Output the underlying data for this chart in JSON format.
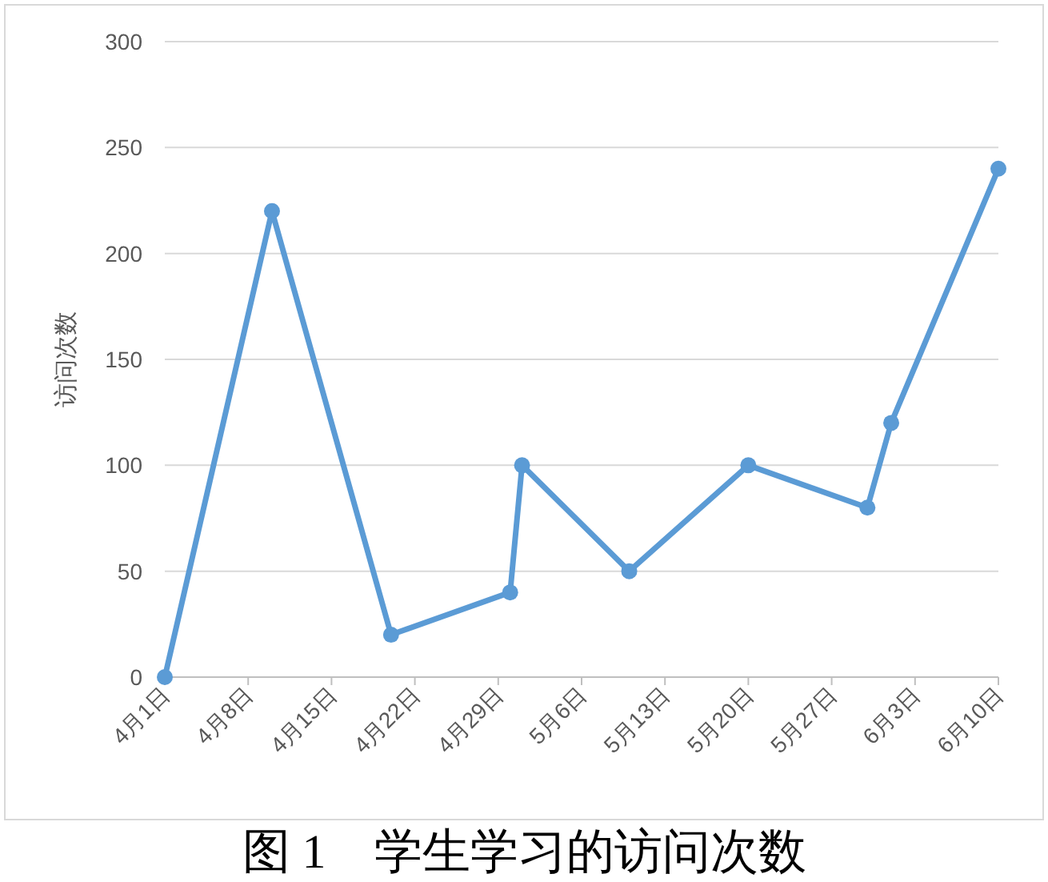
{
  "chart_data": {
    "type": "line",
    "title": "图 1　学生学习的访问次数",
    "ylabel": "访问次数",
    "x": [
      "--04-01",
      "--04-10",
      "--04-20",
      "--04-30",
      "--05-01",
      "--05-10",
      "--05-20",
      "--05-30",
      "--06-01",
      "--06-10"
    ],
    "series": [
      {
        "color": "#5b9bd5",
        "values": [
          0,
          220,
          20,
          40,
          100,
          50,
          100,
          80,
          120,
          240
        ]
      }
    ],
    "xlim": [
      "--04-01",
      "--06-10"
    ],
    "xticks": [
      {
        "value": "--04-01",
        "label": "4月1日"
      },
      {
        "value": "--04-08",
        "label": "4月8日"
      },
      {
        "value": "--04-15",
        "label": "4月15日"
      },
      {
        "value": "--04-22",
        "label": "4月22日"
      },
      {
        "value": "--04-29",
        "label": "4月29日"
      },
      {
        "value": "--05-06",
        "label": "5月6日"
      },
      {
        "value": "--05-13",
        "label": "5月13日"
      },
      {
        "value": "--05-20",
        "label": "5月20日"
      },
      {
        "value": "--05-27",
        "label": "5月27日"
      },
      {
        "value": "--06-03",
        "label": "6月3日"
      },
      {
        "value": "--06-10",
        "label": "6月10日"
      }
    ],
    "ylim": [
      0,
      300
    ],
    "yticks": [
      0,
      50,
      100,
      150,
      200,
      250,
      300
    ],
    "grid": "y",
    "marker": "circle",
    "line_style": "solid"
  }
}
